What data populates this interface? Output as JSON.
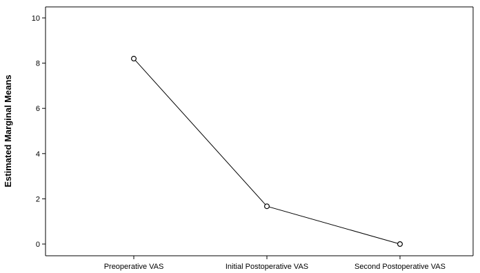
{
  "chart_data": {
    "type": "line",
    "title": "",
    "xlabel": "",
    "ylabel": "Estimated Marginal Means",
    "categories": [
      "Preoperative VAS",
      "Initial Postoperative VAS",
      "Second Postoperative VAS"
    ],
    "series": [
      {
        "values": [
          8.2,
          1.67,
          0.0
        ],
        "color": "#000000",
        "marker": "open-circle"
      }
    ],
    "ylim": [
      0,
      10
    ],
    "yticks": [
      0,
      2,
      4,
      6,
      8,
      10
    ],
    "grid": false,
    "legend": "none"
  }
}
